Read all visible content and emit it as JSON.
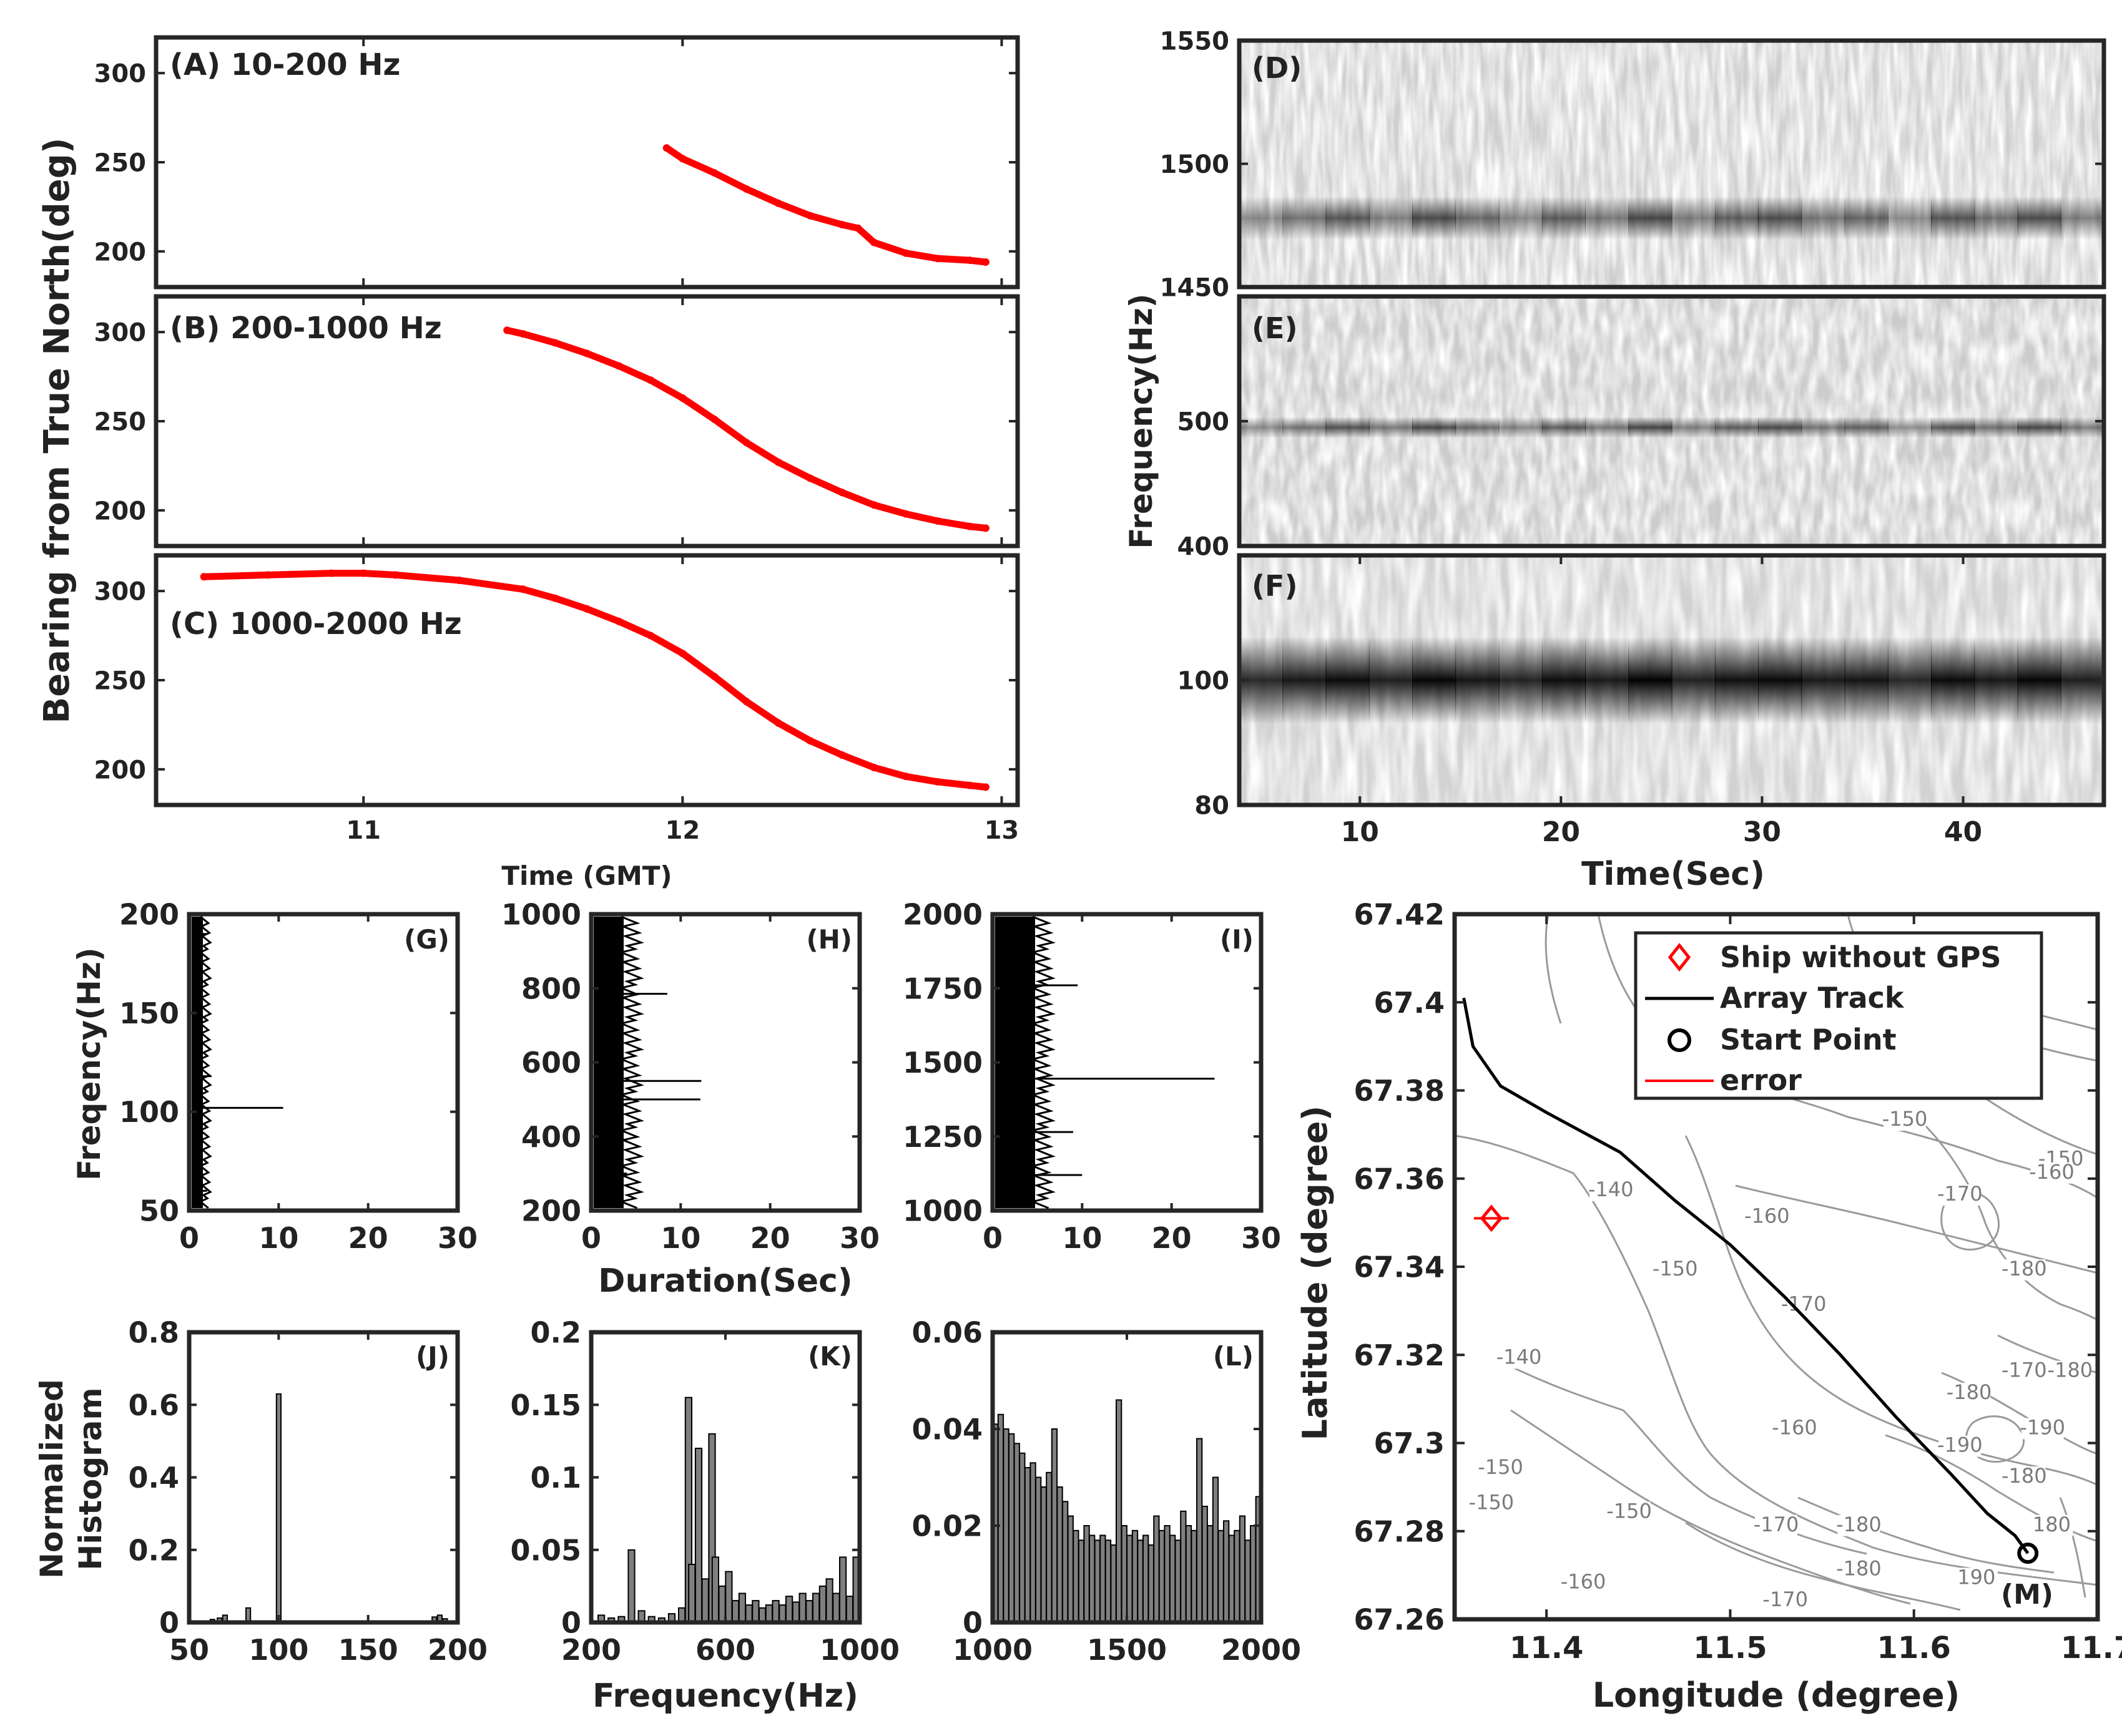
{
  "figure": {
    "ylabel_abc": "Bearing from True North(deg)",
    "xlabel_abc": "Time (GMT)",
    "ylabel_def": "Frequency(Hz)",
    "xlabel_def": "Time(Sec)",
    "ylabel_ghi": "Freqency(Hz)",
    "xlabel_ghi": "Duration(Sec)",
    "ylabel_jkl_line1": "Normalized",
    "ylabel_jkl_line2": "Histogram",
    "xlabel_jkl": "Frequency(Hz)",
    "ylabel_m": "Latitude (degree)",
    "xlabel_m": "Longitude (degree)"
  },
  "colors": {
    "bearing": "#ff0000",
    "axis": "#262626",
    "bar": "#7f7f7f",
    "contour": "#9a9a9a",
    "track": "#000000",
    "ship": "#ff0000"
  },
  "chart_data": [
    {
      "id": "A",
      "type": "scatter",
      "title": "(A) 10-200 Hz",
      "xlim": [
        10.35,
        13.05
      ],
      "ylim": [
        180,
        320
      ],
      "yticks": [
        200,
        250,
        300
      ],
      "xticks": [
        11,
        12,
        13
      ],
      "series": [
        {
          "name": "bearing",
          "x": [
            11.95,
            12.0,
            12.1,
            12.2,
            12.3,
            12.4,
            12.5,
            12.55,
            12.6,
            12.7,
            12.8,
            12.9,
            12.95
          ],
          "y": [
            258,
            252,
            244,
            235,
            227,
            220,
            215,
            213,
            205,
            199,
            196,
            195,
            194
          ]
        }
      ]
    },
    {
      "id": "B",
      "type": "scatter",
      "title": "(B) 200-1000 Hz",
      "xlim": [
        10.35,
        13.05
      ],
      "ylim": [
        180,
        320
      ],
      "yticks": [
        200,
        250,
        300
      ],
      "xticks": [
        11,
        12,
        13
      ],
      "series": [
        {
          "name": "bearing",
          "x": [
            11.45,
            11.5,
            11.6,
            11.7,
            11.8,
            11.9,
            12.0,
            12.1,
            12.2,
            12.3,
            12.4,
            12.5,
            12.6,
            12.7,
            12.8,
            12.9,
            12.95
          ],
          "y": [
            301,
            299,
            294,
            288,
            281,
            273,
            263,
            251,
            238,
            227,
            218,
            210,
            203,
            198,
            194,
            191,
            190
          ]
        }
      ]
    },
    {
      "id": "C",
      "type": "scatter",
      "title": "(C) 1000-2000 Hz",
      "xlim": [
        10.35,
        13.05
      ],
      "ylim": [
        180,
        320
      ],
      "yticks": [
        200,
        250,
        300
      ],
      "xticks": [
        11,
        12,
        13
      ],
      "series": [
        {
          "name": "bearing",
          "x": [
            10.5,
            10.7,
            10.9,
            11.0,
            11.1,
            11.3,
            11.5,
            11.6,
            11.7,
            11.8,
            11.9,
            12.0,
            12.1,
            12.2,
            12.3,
            12.4,
            12.5,
            12.6,
            12.7,
            12.8,
            12.9,
            12.95
          ],
          "y": [
            308,
            309,
            310,
            310,
            309,
            306,
            301,
            296,
            290,
            283,
            275,
            265,
            252,
            238,
            226,
            216,
            208,
            201,
            196,
            193,
            191,
            190
          ]
        }
      ]
    },
    {
      "id": "D",
      "type": "heatmap",
      "title": "(D)",
      "xlim": [
        4,
        47
      ],
      "ylim": [
        1450,
        1550
      ],
      "yticks": [
        1450,
        1500,
        1550
      ],
      "band_freq": 1478,
      "xticks": []
    },
    {
      "id": "E",
      "type": "heatmap",
      "title": "(E)",
      "xlim": [
        4,
        47
      ],
      "ylim": [
        400,
        600
      ],
      "yticks": [
        400,
        500
      ],
      "band_freq": 495,
      "xticks": []
    },
    {
      "id": "F",
      "type": "heatmap",
      "title": "(F)",
      "xlim": [
        4,
        47
      ],
      "ylim": [
        80,
        120
      ],
      "yticks": [
        80,
        100
      ],
      "band_freq": 100,
      "xticks": [
        10,
        20,
        30,
        40
      ]
    },
    {
      "id": "G",
      "type": "line",
      "title": "(G)",
      "xlim": [
        0,
        30
      ],
      "ylim": [
        50,
        200
      ],
      "xticks": [
        0,
        10,
        20,
        30
      ],
      "yticks": [
        50,
        100,
        150,
        200
      ],
      "spikes": [
        {
          "y": 102,
          "x": 10.5
        },
        {
          "y": 118,
          "x": 2.5
        },
        {
          "y": 190,
          "x": 2
        },
        {
          "y": 60,
          "x": 2
        }
      ]
    },
    {
      "id": "H",
      "type": "line",
      "title": "(H)",
      "xlim": [
        0,
        30
      ],
      "ylim": [
        200,
        1000
      ],
      "xticks": [
        0,
        10,
        20,
        30
      ],
      "yticks": [
        200,
        400,
        600,
        800,
        1000
      ],
      "spikes": [
        {
          "y": 550,
          "x": 12.3
        },
        {
          "y": 500,
          "x": 12.2
        },
        {
          "y": 785,
          "x": 8.5
        },
        {
          "y": 300,
          "x": 4
        }
      ]
    },
    {
      "id": "I",
      "type": "line",
      "title": "(I)",
      "xlim": [
        0,
        30
      ],
      "ylim": [
        1000,
        2000
      ],
      "xticks": [
        0,
        10,
        20,
        30
      ],
      "yticks": [
        1000,
        1250,
        1500,
        1750,
        2000
      ],
      "spikes": [
        {
          "y": 1445,
          "x": 24.8
        },
        {
          "y": 1760,
          "x": 9.5
        },
        {
          "y": 1265,
          "x": 9
        },
        {
          "y": 1120,
          "x": 10
        }
      ]
    },
    {
      "id": "J",
      "type": "bar",
      "title": "(J)",
      "xlim": [
        50,
        200
      ],
      "ylim": [
        0,
        0.8
      ],
      "xticks": [
        50,
        100,
        150,
        200
      ],
      "yticks": [
        0,
        0.2,
        0.4,
        0.6,
        0.8
      ],
      "bins": [
        63,
        67,
        70,
        83,
        100,
        187,
        190,
        193
      ],
      "values": [
        0.008,
        0.012,
        0.02,
        0.04,
        0.63,
        0.015,
        0.02,
        0.01
      ]
    },
    {
      "id": "K",
      "type": "bar",
      "title": "(K)",
      "xlim": [
        200,
        1000
      ],
      "ylim": [
        0,
        0.2
      ],
      "xticks": [
        200,
        600,
        1000
      ],
      "yticks": [
        0,
        0.05,
        0.1,
        0.15,
        0.2
      ],
      "bins": [
        230,
        260,
        290,
        320,
        350,
        380,
        410,
        440,
        470,
        490,
        500,
        520,
        540,
        560,
        570,
        590,
        610,
        630,
        650,
        670,
        690,
        710,
        730,
        750,
        770,
        790,
        810,
        830,
        850,
        870,
        890,
        910,
        930,
        950,
        970,
        990
      ],
      "values": [
        0.005,
        0.003,
        0.004,
        0.05,
        0.008,
        0.004,
        0.003,
        0.006,
        0.01,
        0.155,
        0.04,
        0.12,
        0.03,
        0.13,
        0.045,
        0.025,
        0.035,
        0.015,
        0.02,
        0.012,
        0.015,
        0.01,
        0.012,
        0.015,
        0.012,
        0.018,
        0.014,
        0.02,
        0.015,
        0.02,
        0.025,
        0.03,
        0.02,
        0.045,
        0.018,
        0.045
      ]
    },
    {
      "id": "L",
      "type": "bar",
      "title": "(L)",
      "xlim": [
        1000,
        2000
      ],
      "ylim": [
        0,
        0.06
      ],
      "xticks": [
        1000,
        1500,
        2000
      ],
      "yticks": [
        0,
        0.02,
        0.04,
        0.06
      ],
      "bins": [
        1010,
        1030,
        1050,
        1070,
        1090,
        1110,
        1130,
        1150,
        1170,
        1190,
        1210,
        1230,
        1250,
        1270,
        1290,
        1310,
        1330,
        1350,
        1370,
        1390,
        1410,
        1430,
        1450,
        1470,
        1490,
        1510,
        1530,
        1550,
        1570,
        1590,
        1610,
        1630,
        1650,
        1670,
        1690,
        1710,
        1730,
        1750,
        1770,
        1790,
        1810,
        1830,
        1850,
        1870,
        1890,
        1910,
        1930,
        1950,
        1970,
        1990
      ],
      "values": [
        0.041,
        0.043,
        0.04,
        0.039,
        0.037,
        0.035,
        0.032,
        0.033,
        0.03,
        0.028,
        0.031,
        0.04,
        0.028,
        0.025,
        0.022,
        0.019,
        0.017,
        0.02,
        0.018,
        0.017,
        0.018,
        0.017,
        0.016,
        0.046,
        0.02,
        0.018,
        0.019,
        0.017,
        0.018,
        0.016,
        0.022,
        0.019,
        0.02,
        0.018,
        0.017,
        0.023,
        0.02,
        0.019,
        0.038,
        0.024,
        0.02,
        0.03,
        0.019,
        0.021,
        0.018,
        0.019,
        0.022,
        0.017,
        0.02,
        0.026
      ]
    },
    {
      "id": "M",
      "type": "line",
      "title": "(M)",
      "xlim": [
        11.35,
        11.7
      ],
      "ylim": [
        67.26,
        67.42
      ],
      "xticks": [
        11.4,
        11.5,
        11.6,
        11.7
      ],
      "yticks": [
        67.26,
        67.28,
        67.3,
        67.32,
        67.34,
        67.36,
        67.38,
        67.4,
        67.42
      ],
      "legend": [
        "Ship without GPS",
        "Array Track",
        "Start Point",
        "error"
      ],
      "array_track": {
        "lon": [
          11.355,
          11.36,
          11.375,
          11.4,
          11.44,
          11.47,
          11.5,
          11.53,
          11.56,
          11.59,
          11.62,
          11.64,
          11.655,
          11.662
        ],
        "lat": [
          67.401,
          67.39,
          67.381,
          67.375,
          67.366,
          67.355,
          67.345,
          67.333,
          67.32,
          67.306,
          67.293,
          67.284,
          67.279,
          67.275
        ]
      },
      "start_point": {
        "lon": 11.662,
        "lat": 67.275
      },
      "ship": {
        "lon": 11.37,
        "lat": 67.351
      },
      "contour_labels": [
        {
          "text": "-140",
          "lon": 11.435,
          "lat": 67.356
        },
        {
          "text": "-150",
          "lon": 11.47,
          "lat": 67.338
        },
        {
          "text": "-160",
          "lon": 11.52,
          "lat": 67.35
        },
        {
          "text": "-170",
          "lon": 11.54,
          "lat": 67.33
        },
        {
          "text": "-150",
          "lon": 11.595,
          "lat": 67.372
        },
        {
          "text": "-170",
          "lon": 11.625,
          "lat": 67.355
        },
        {
          "text": "-150",
          "lon": 11.68,
          "lat": 67.363
        },
        {
          "text": "-160",
          "lon": 11.675,
          "lat": 67.36
        },
        {
          "text": "-180",
          "lon": 11.66,
          "lat": 67.338
        },
        {
          "text": "-140",
          "lon": 11.385,
          "lat": 67.318
        },
        {
          "text": "-180",
          "lon": 11.63,
          "lat": 67.31
        },
        {
          "text": "-170",
          "lon": 11.66,
          "lat": 67.315
        },
        {
          "text": "-180",
          "lon": 11.685,
          "lat": 67.315
        },
        {
          "text": "-190",
          "lon": 11.67,
          "lat": 67.302
        },
        {
          "text": "-180",
          "lon": 11.66,
          "lat": 67.291
        },
        {
          "text": "-190",
          "lon": 11.625,
          "lat": 67.298
        },
        {
          "text": "-160",
          "lon": 11.535,
          "lat": 67.302
        },
        {
          "text": "-150",
          "lon": 11.375,
          "lat": 67.293
        },
        {
          "text": "-150",
          "lon": 11.37,
          "lat": 67.285
        },
        {
          "text": "-150",
          "lon": 11.445,
          "lat": 67.283
        },
        {
          "text": "-170",
          "lon": 11.525,
          "lat": 67.28
        },
        {
          "text": "-180",
          "lon": 11.57,
          "lat": 67.28
        },
        {
          "text": "-180",
          "lon": 11.57,
          "lat": 67.27
        },
        {
          "text": "-170",
          "lon": 11.53,
          "lat": 67.263
        },
        {
          "text": "-160",
          "lon": 11.42,
          "lat": 67.267
        },
        {
          "text": "190",
          "lon": 11.634,
          "lat": 67.268
        },
        {
          "text": "180",
          "lon": 11.675,
          "lat": 67.28
        }
      ]
    }
  ]
}
